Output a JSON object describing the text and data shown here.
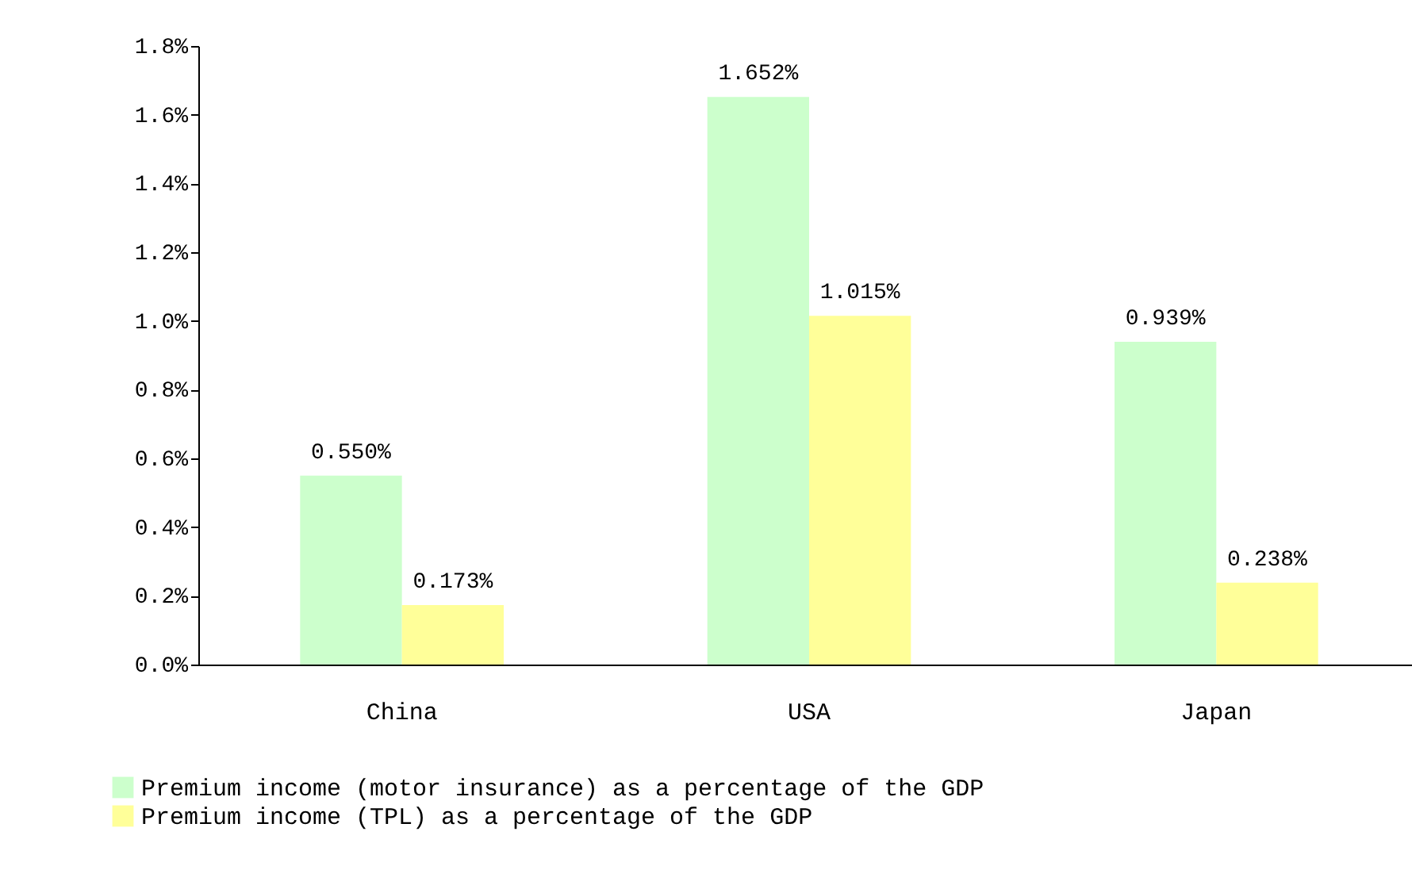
{
  "chart_data": {
    "type": "bar",
    "categories": [
      "China",
      "USA",
      "Japan"
    ],
    "series": [
      {
        "name": "Premium income (motor insurance) as a percentage of the GDP",
        "color": "#ccffcc",
        "values": [
          0.55,
          1.652,
          0.939
        ],
        "value_labels": [
          "0.550%",
          "1.652%",
          "0.939%"
        ]
      },
      {
        "name": "Premium income (TPL) as a percentage of the GDP",
        "color": "#ffff99",
        "values": [
          0.173,
          1.015,
          0.238
        ],
        "value_labels": [
          "0.173%",
          "1.015%",
          "0.238%"
        ]
      }
    ],
    "ylim": [
      0,
      1.8
    ],
    "yticks": [
      {
        "value": 0,
        "label": "0.0%"
      },
      {
        "value": 0.2,
        "label": "0.2%"
      },
      {
        "value": 0.4,
        "label": "0.4%"
      },
      {
        "value": 0.6,
        "label": "0.6%"
      },
      {
        "value": 0.8,
        "label": "0.8%"
      },
      {
        "value": 1.0,
        "label": "1.0%"
      },
      {
        "value": 1.2,
        "label": "1.2%"
      },
      {
        "value": 1.4,
        "label": "1.4%"
      },
      {
        "value": 1.6,
        "label": "1.6%"
      },
      {
        "value": 1.8,
        "label": "1.8%"
      }
    ],
    "grid": false,
    "legend": "bottom"
  }
}
